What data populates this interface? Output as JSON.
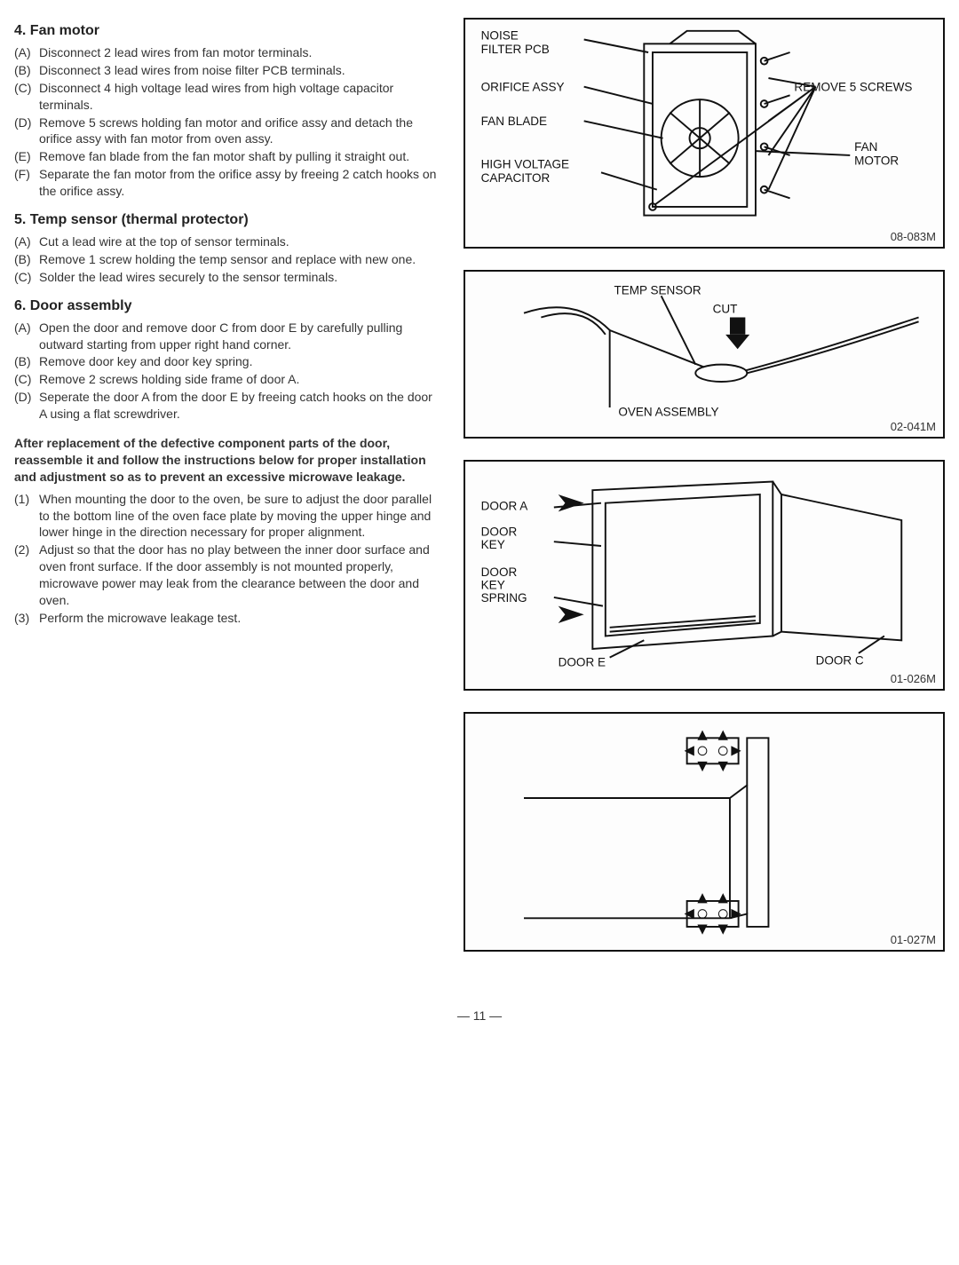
{
  "page_number": "— 11 —",
  "sections": {
    "s4": {
      "title": "4. Fan motor",
      "items": [
        {
          "m": "(A)",
          "t": "Disconnect 2 lead wires from fan motor terminals."
        },
        {
          "m": "(B)",
          "t": "Disconnect 3 lead wires from noise filter PCB terminals."
        },
        {
          "m": "(C)",
          "t": "Disconnect 4 high voltage lead wires from high voltage capacitor terminals."
        },
        {
          "m": "(D)",
          "t": "Remove 5 screws holding fan motor and orifice assy and detach the orifice assy with fan motor from oven assy."
        },
        {
          "m": "(E)",
          "t": "Remove fan blade from the fan motor shaft by pulling it straight out."
        },
        {
          "m": "(F)",
          "t": "Separate the fan motor from the orifice assy by freeing 2 catch hooks on the orifice assy."
        }
      ]
    },
    "s5": {
      "title": "5. Temp sensor (thermal protector)",
      "items": [
        {
          "m": "(A)",
          "t": "Cut a lead wire at the top of sensor terminals."
        },
        {
          "m": "(B)",
          "t": "Remove 1 screw holding the temp sensor and replace with new one."
        },
        {
          "m": "(C)",
          "t": "Solder the lead wires securely to the sensor terminals."
        }
      ]
    },
    "s6": {
      "title": "6. Door assembly",
      "items": [
        {
          "m": "(A)",
          "t": "Open the door and remove door C from door E by carefully pulling outward starting from upper right hand corner."
        },
        {
          "m": "(B)",
          "t": "Remove door key and door key spring."
        },
        {
          "m": "(C)",
          "t": "Remove 2 screws holding side frame of door A."
        },
        {
          "m": "(D)",
          "t": "Seperate the door A from the door E by freeing catch hooks on the door A using a flat screwdriver."
        }
      ],
      "bold_note": "After replacement of the defective component parts of the door, reassemble it and follow the instructions below for proper installation and adjustment so as to prevent an excessive microwave leakage.",
      "numbered": [
        {
          "m": "(1)",
          "t": "When mounting the door to the oven, be sure to adjust the door parallel to the bottom line of the oven face plate by moving the upper hinge and lower hinge in the direction necessary for proper alignment."
        },
        {
          "m": "(2)",
          "t": "Adjust so that the door has no play between the inner door surface and oven front surface. If the door assembly is not mounted properly, microwave power may leak from the clearance between the door and oven."
        },
        {
          "m": "(3)",
          "t": "Perform the microwave leakage test."
        }
      ]
    }
  },
  "figures": {
    "f1": {
      "id": "08-083M",
      "labels": {
        "noise": "NOISE\nFILTER PCB",
        "orifice": "ORIFICE ASSY",
        "fanblade": "FAN BLADE",
        "hvcap": "HIGH VOLTAGE\nCAPACITOR",
        "remove": "REMOVE 5 SCREWS",
        "fanmotor": "FAN\nMOTOR"
      }
    },
    "f2": {
      "id": "02-041M",
      "labels": {
        "temp": "TEMP SENSOR",
        "cut": "CUT",
        "oven": "OVEN ASSEMBLY"
      }
    },
    "f3": {
      "id": "01-026M",
      "labels": {
        "doora": "DOOR A",
        "doorkey": "DOOR\nKEY",
        "spring": "DOOR\nKEY\nSPRING",
        "doore": "DOOR E",
        "doorc": "DOOR C"
      }
    },
    "f4": {
      "id": "01-027M"
    }
  },
  "style": {
    "stroke": "#111",
    "font": "Arial"
  }
}
